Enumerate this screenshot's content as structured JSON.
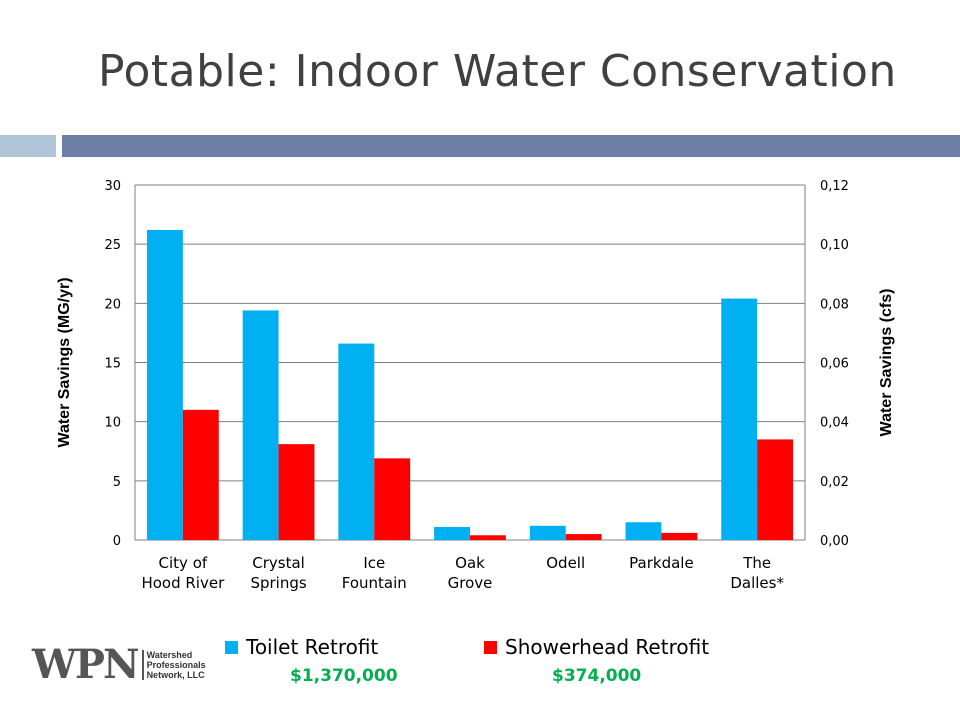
{
  "slide": {
    "title": "Potable: Indoor Water Conservation"
  },
  "chart_data": {
    "type": "bar",
    "categories": [
      [
        "City of",
        "Hood River"
      ],
      [
        "Crystal",
        "Springs"
      ],
      [
        "Ice",
        "Fountain"
      ],
      [
        "Oak",
        "Grove"
      ],
      [
        "Odell"
      ],
      [
        "Parkdale"
      ],
      [
        "The",
        "Dalles*"
      ]
    ],
    "series": [
      {
        "name": "Toilet Retrofit",
        "color": "#00b0f0",
        "values": [
          26.2,
          19.4,
          16.6,
          1.1,
          1.2,
          1.5,
          20.4
        ]
      },
      {
        "name": "Showerhead Retrofit",
        "color": "#ff0000",
        "values": [
          11.0,
          8.1,
          6.9,
          0.4,
          0.5,
          0.6,
          8.5
        ]
      }
    ],
    "ylabel": "Water Savings (MG/yr)",
    "y2label": "Water Savings (cfs)",
    "ylim": [
      0,
      30
    ],
    "y2lim": [
      0,
      0.12
    ],
    "yticks": [
      "0",
      "5",
      "10",
      "15",
      "20",
      "25",
      "30"
    ],
    "y2ticks": [
      "0,00",
      "0,02",
      "0,04",
      "0,06",
      "0,08",
      "0,10",
      "0,12"
    ],
    "grid": true,
    "legend_position": "bottom"
  },
  "costs": {
    "toilet": "$1,370,000",
    "showerhead": "$374,000",
    "color": "#00b050"
  },
  "logo": {
    "mark": "WPN",
    "line1": "Watershed",
    "line2": "Professionals",
    "line3": "Network, LLC"
  }
}
